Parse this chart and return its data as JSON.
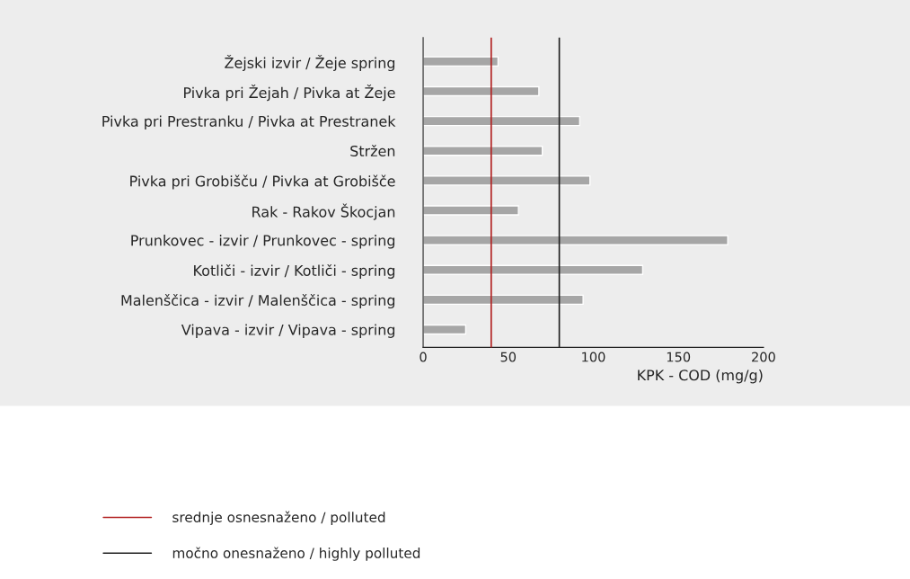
{
  "chart_data": {
    "type": "bar",
    "orientation": "horizontal",
    "categories": [
      "Žejski izvir / Žeje spring",
      "Pivka pri Žejah / Pivka at Žeje",
      "Pivka pri Prestranku / Pivka at Prestranek",
      "Stržen",
      "Pivka pri Grobišču / Pivka at Grobišče",
      "Rak - Rakov Škocjan",
      "Prunkovec - izvir / Prunkovec - spring",
      "Kotliči - izvir / Kotliči - spring",
      "Malenščica - izvir / Malenščica - spring",
      "Vipava - izvir / Vipava - spring"
    ],
    "values": [
      44,
      68,
      92,
      70,
      98,
      56,
      179,
      129,
      94,
      25
    ],
    "color": "#a6a6a6",
    "xlabel": "KPK - COD (mg/g)",
    "xlim": [
      0,
      200
    ],
    "xticks": [
      0,
      50,
      100,
      150,
      200
    ],
    "grid": false,
    "legend": "bottom",
    "ref_lines": [
      {
        "axis": "x",
        "value": 40,
        "label": "srednje osnesnaženo / polluted",
        "color": "#b22222"
      },
      {
        "axis": "x",
        "value": 80,
        "label": "močno onesnaženo / highly polluted",
        "color": "#222222"
      }
    ]
  }
}
